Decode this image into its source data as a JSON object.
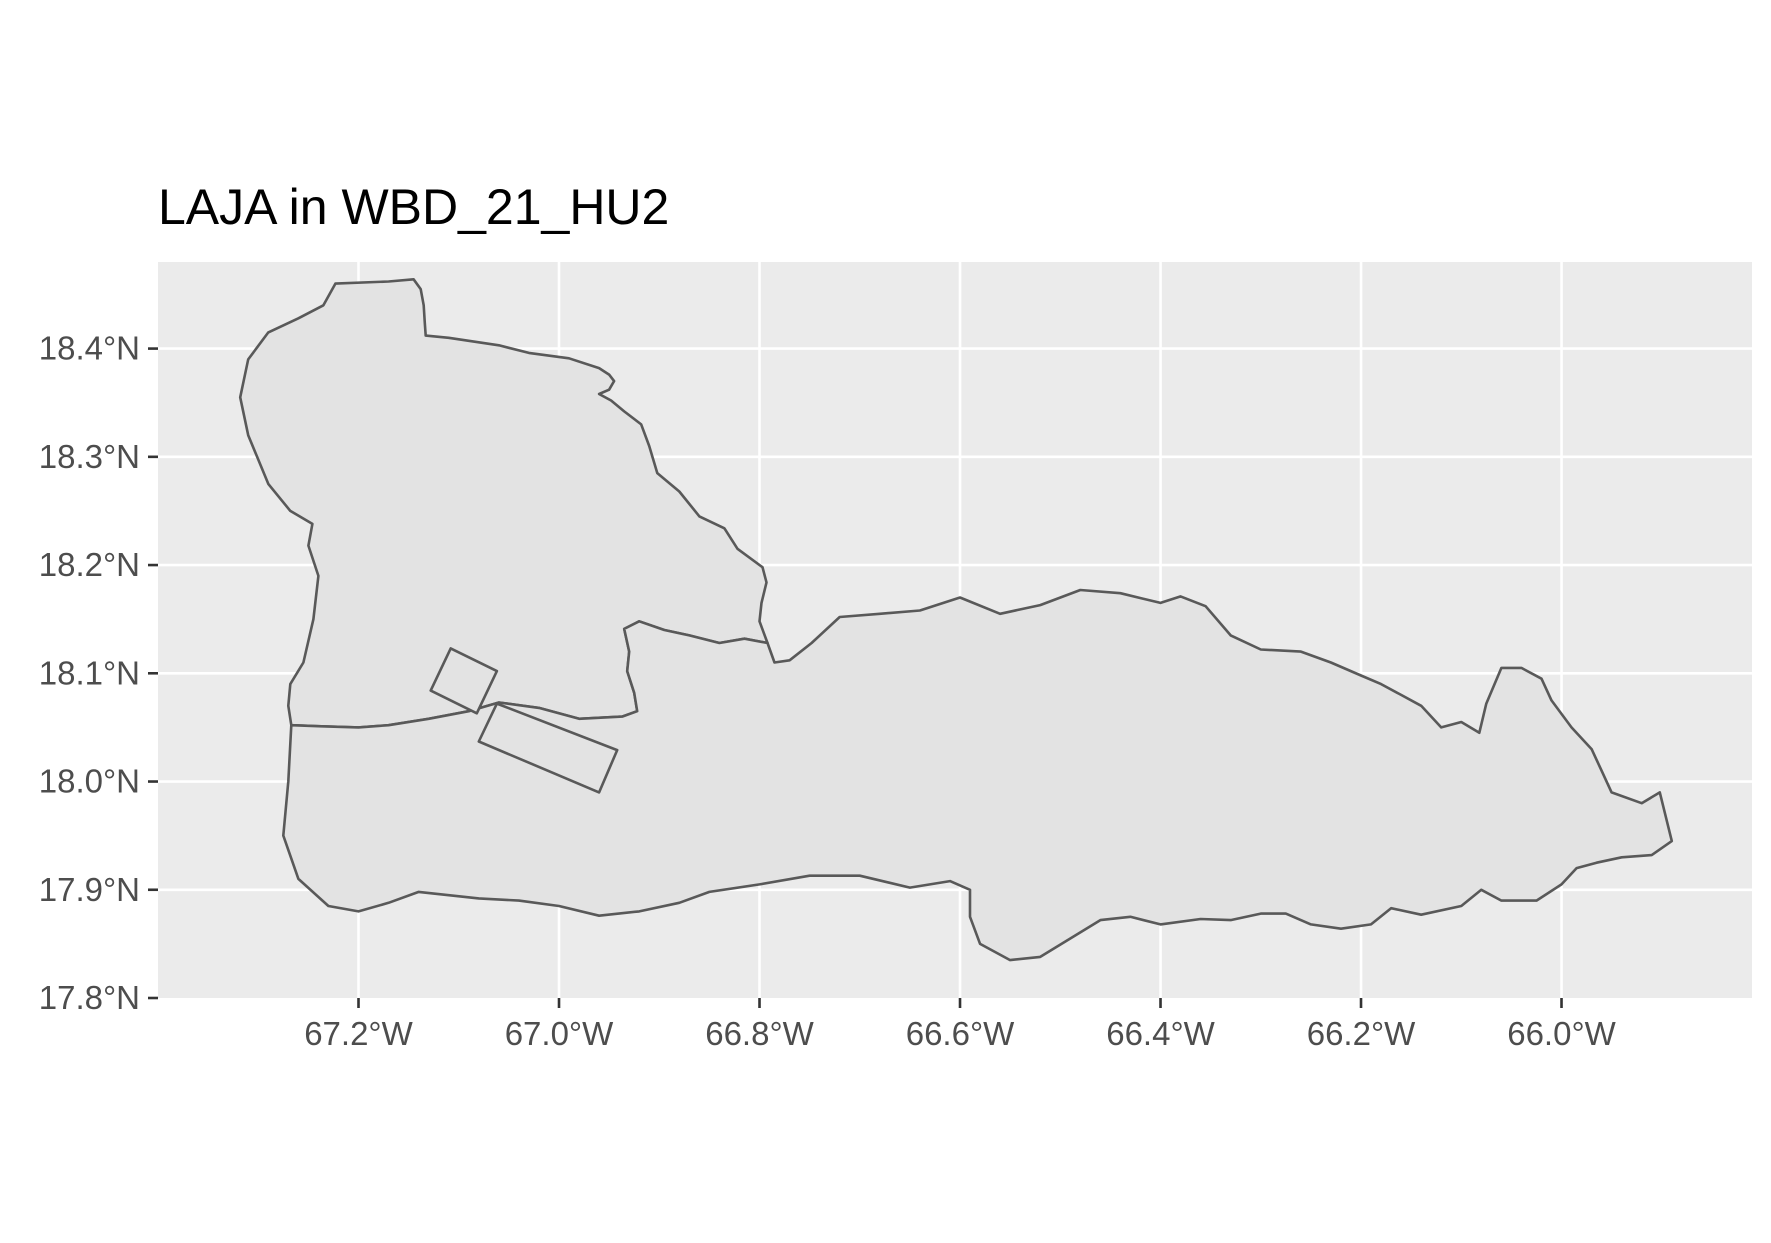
{
  "title": "LAJA in WBD_21_HU2",
  "colors": {
    "panel_background": "#ebebeb",
    "grid": "#ffffff",
    "region_fill": "#e3e3e3",
    "region_outline": "#595959",
    "tick_label": "#4d4d4d",
    "title": "#000000"
  },
  "chart_data": {
    "type": "map",
    "title": "LAJA in WBD_21_HU2",
    "grid": true,
    "x_axis": {
      "ticks": [
        -67.2,
        -67.0,
        -66.8,
        -66.6,
        -66.4,
        -66.2,
        -66.0
      ],
      "tick_labels": [
        "67.2°W",
        "67.0°W",
        "66.8°W",
        "66.6°W",
        "66.4°W",
        "66.2°W",
        "66.0°W"
      ]
    },
    "y_axis": {
      "ticks": [
        17.8,
        17.9,
        18.0,
        18.1,
        18.2,
        18.3,
        18.4
      ],
      "tick_labels": [
        "17.8°N",
        "17.9°N",
        "18.0°N",
        "18.1°N",
        "18.2°N",
        "18.3°N",
        "18.4°N"
      ]
    },
    "xlim": [
      -67.4,
      -65.81
    ],
    "ylim": [
      17.8,
      18.48
    ],
    "polygons": [
      {
        "id": "northwest",
        "coords": [
          [
            -67.223,
            18.46
          ],
          [
            -67.17,
            18.462
          ],
          [
            -67.145,
            18.464
          ],
          [
            -67.138,
            18.455
          ],
          [
            -67.135,
            18.44
          ],
          [
            -67.134,
            18.425
          ],
          [
            -67.133,
            18.412
          ],
          [
            -67.11,
            18.41
          ],
          [
            -67.06,
            18.403
          ],
          [
            -67.03,
            18.396
          ],
          [
            -66.99,
            18.391
          ],
          [
            -66.96,
            18.382
          ],
          [
            -66.95,
            18.376
          ],
          [
            -66.945,
            18.37
          ],
          [
            -66.95,
            18.362
          ],
          [
            -66.96,
            18.358
          ],
          [
            -66.948,
            18.352
          ],
          [
            -66.935,
            18.342
          ],
          [
            -66.918,
            18.33
          ],
          [
            -66.91,
            18.31
          ],
          [
            -66.902,
            18.285
          ],
          [
            -66.88,
            18.268
          ],
          [
            -66.86,
            18.245
          ],
          [
            -66.835,
            18.234
          ],
          [
            -66.822,
            18.215
          ],
          [
            -66.797,
            18.198
          ],
          [
            -66.793,
            18.184
          ],
          [
            -66.798,
            18.165
          ],
          [
            -66.8,
            18.148
          ],
          [
            -66.792,
            18.128
          ],
          [
            -66.815,
            18.132
          ],
          [
            -66.84,
            18.128
          ],
          [
            -66.87,
            18.135
          ],
          [
            -66.895,
            18.14
          ],
          [
            -66.92,
            18.148
          ],
          [
            -66.935,
            18.141
          ],
          [
            -66.93,
            18.12
          ],
          [
            -66.932,
            18.102
          ],
          [
            -66.925,
            18.082
          ],
          [
            -66.922,
            18.065
          ],
          [
            -66.937,
            18.06
          ],
          [
            -66.98,
            18.058
          ],
          [
            -67.02,
            18.068
          ],
          [
            -67.06,
            18.073
          ],
          [
            -67.09,
            18.065
          ],
          [
            -67.13,
            18.058
          ],
          [
            -67.17,
            18.052
          ],
          [
            -67.2,
            18.05
          ],
          [
            -67.237,
            18.051
          ],
          [
            -67.267,
            18.052
          ],
          [
            -67.27,
            18.07
          ],
          [
            -67.268,
            18.09
          ],
          [
            -67.255,
            18.11
          ],
          [
            -67.245,
            18.15
          ],
          [
            -67.24,
            18.19
          ],
          [
            -67.25,
            18.218
          ],
          [
            -67.246,
            18.238
          ],
          [
            -67.268,
            18.25
          ],
          [
            -67.29,
            18.275
          ],
          [
            -67.31,
            18.32
          ],
          [
            -67.318,
            18.355
          ],
          [
            -67.31,
            18.39
          ],
          [
            -67.29,
            18.415
          ],
          [
            -67.26,
            18.428
          ],
          [
            -67.235,
            18.44
          ],
          [
            -67.223,
            18.46
          ]
        ]
      },
      {
        "id": "south",
        "coords": [
          [
            -67.267,
            18.052
          ],
          [
            -67.237,
            18.051
          ],
          [
            -67.2,
            18.05
          ],
          [
            -67.17,
            18.052
          ],
          [
            -67.13,
            18.058
          ],
          [
            -67.09,
            18.065
          ],
          [
            -67.06,
            18.073
          ],
          [
            -67.02,
            18.068
          ],
          [
            -66.98,
            18.058
          ],
          [
            -66.937,
            18.06
          ],
          [
            -66.922,
            18.065
          ],
          [
            -66.925,
            18.082
          ],
          [
            -66.932,
            18.102
          ],
          [
            -66.93,
            18.12
          ],
          [
            -66.935,
            18.141
          ],
          [
            -66.92,
            18.148
          ],
          [
            -66.895,
            18.14
          ],
          [
            -66.87,
            18.135
          ],
          [
            -66.84,
            18.128
          ],
          [
            -66.815,
            18.132
          ],
          [
            -66.792,
            18.128
          ],
          [
            -66.785,
            18.11
          ],
          [
            -66.77,
            18.112
          ],
          [
            -66.748,
            18.128
          ],
          [
            -66.72,
            18.152
          ],
          [
            -66.68,
            18.155
          ],
          [
            -66.64,
            18.158
          ],
          [
            -66.6,
            18.17
          ],
          [
            -66.56,
            18.155
          ],
          [
            -66.52,
            18.163
          ],
          [
            -66.48,
            18.177
          ],
          [
            -66.44,
            18.174
          ],
          [
            -66.4,
            18.165
          ],
          [
            -66.38,
            18.171
          ],
          [
            -66.355,
            18.162
          ],
          [
            -66.33,
            18.135
          ],
          [
            -66.3,
            18.122
          ],
          [
            -66.26,
            18.12
          ],
          [
            -66.23,
            18.11
          ],
          [
            -66.2,
            18.098
          ],
          [
            -66.18,
            18.09
          ],
          [
            -66.16,
            18.08
          ],
          [
            -66.14,
            18.07
          ],
          [
            -66.12,
            18.05
          ],
          [
            -66.1,
            18.055
          ],
          [
            -66.082,
            18.045
          ],
          [
            -66.075,
            18.072
          ],
          [
            -66.06,
            18.105
          ],
          [
            -66.04,
            18.105
          ],
          [
            -66.02,
            18.095
          ],
          [
            -66.01,
            18.075
          ],
          [
            -65.99,
            18.05
          ],
          [
            -65.97,
            18.03
          ],
          [
            -65.96,
            18.01
          ],
          [
            -65.95,
            17.99
          ],
          [
            -65.92,
            17.98
          ],
          [
            -65.902,
            17.99
          ],
          [
            -65.89,
            17.945
          ],
          [
            -65.91,
            17.932
          ],
          [
            -65.94,
            17.93
          ],
          [
            -65.965,
            17.925
          ],
          [
            -65.985,
            17.92
          ],
          [
            -66.0,
            17.905
          ],
          [
            -66.025,
            17.89
          ],
          [
            -66.06,
            17.89
          ],
          [
            -66.08,
            17.9
          ],
          [
            -66.1,
            17.885
          ],
          [
            -66.14,
            17.877
          ],
          [
            -66.17,
            17.883
          ],
          [
            -66.19,
            17.868
          ],
          [
            -66.22,
            17.864
          ],
          [
            -66.25,
            17.868
          ],
          [
            -66.275,
            17.878
          ],
          [
            -66.3,
            17.878
          ],
          [
            -66.33,
            17.872
          ],
          [
            -66.36,
            17.873
          ],
          [
            -66.4,
            17.868
          ],
          [
            -66.43,
            17.875
          ],
          [
            -66.46,
            17.872
          ],
          [
            -66.49,
            17.855
          ],
          [
            -66.52,
            17.838
          ],
          [
            -66.55,
            17.835
          ],
          [
            -66.58,
            17.85
          ],
          [
            -66.59,
            17.875
          ],
          [
            -66.59,
            17.9
          ],
          [
            -66.61,
            17.908
          ],
          [
            -66.65,
            17.902
          ],
          [
            -66.7,
            17.913
          ],
          [
            -66.75,
            17.913
          ],
          [
            -66.8,
            17.905
          ],
          [
            -66.85,
            17.898
          ],
          [
            -66.88,
            17.888
          ],
          [
            -66.92,
            17.88
          ],
          [
            -66.96,
            17.876
          ],
          [
            -67.0,
            17.885
          ],
          [
            -67.04,
            17.89
          ],
          [
            -67.08,
            17.892
          ],
          [
            -67.14,
            17.898
          ],
          [
            -67.17,
            17.888
          ],
          [
            -67.2,
            17.88
          ],
          [
            -67.23,
            17.885
          ],
          [
            -67.26,
            17.91
          ],
          [
            -67.275,
            17.95
          ],
          [
            -67.27,
            18.0
          ],
          [
            -67.267,
            18.052
          ]
        ]
      },
      {
        "id": "rect-north",
        "coords": [
          [
            -67.128,
            18.084
          ],
          [
            -67.108,
            18.123
          ],
          [
            -67.062,
            18.102
          ],
          [
            -67.082,
            18.063
          ],
          [
            -67.128,
            18.084
          ]
        ]
      },
      {
        "id": "rect-south",
        "coords": [
          [
            -67.08,
            18.037
          ],
          [
            -67.062,
            18.072
          ],
          [
            -66.942,
            18.029
          ],
          [
            -66.96,
            17.99
          ],
          [
            -67.08,
            18.037
          ]
        ]
      }
    ]
  }
}
